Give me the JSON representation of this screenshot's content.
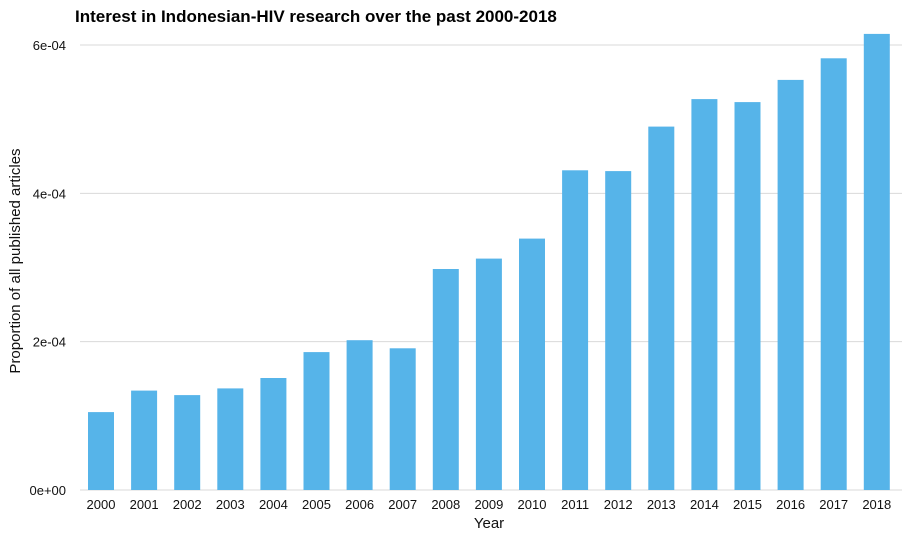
{
  "chart_data": {
    "type": "bar",
    "title": "Interest in Indonesian-HIV research over the past 2000-2018",
    "xlabel": "Year",
    "ylabel": "Proportion of all published articles",
    "categories": [
      "2000",
      "2001",
      "2002",
      "2003",
      "2004",
      "2005",
      "2006",
      "2007",
      "2008",
      "2009",
      "2010",
      "2011",
      "2012",
      "2013",
      "2014",
      "2015",
      "2016",
      "2017",
      "2018"
    ],
    "values": [
      0.000105,
      0.000134,
      0.000128,
      0.000137,
      0.000151,
      0.000186,
      0.000202,
      0.000191,
      0.000298,
      0.000312,
      0.000339,
      0.000431,
      0.00043,
      0.00049,
      0.000527,
      0.000523,
      0.000553,
      0.000582,
      0.000615
    ],
    "ylim": [
      0,
      0.0006
    ],
    "yticks": [
      {
        "value": 0,
        "label": "0e+00"
      },
      {
        "value": 0.0002,
        "label": "2e-04"
      },
      {
        "value": 0.0004,
        "label": "4e-04"
      },
      {
        "value": 0.0006,
        "label": "6e-04"
      }
    ],
    "grid": "horizontal",
    "bar_color": "#56b4e9"
  }
}
